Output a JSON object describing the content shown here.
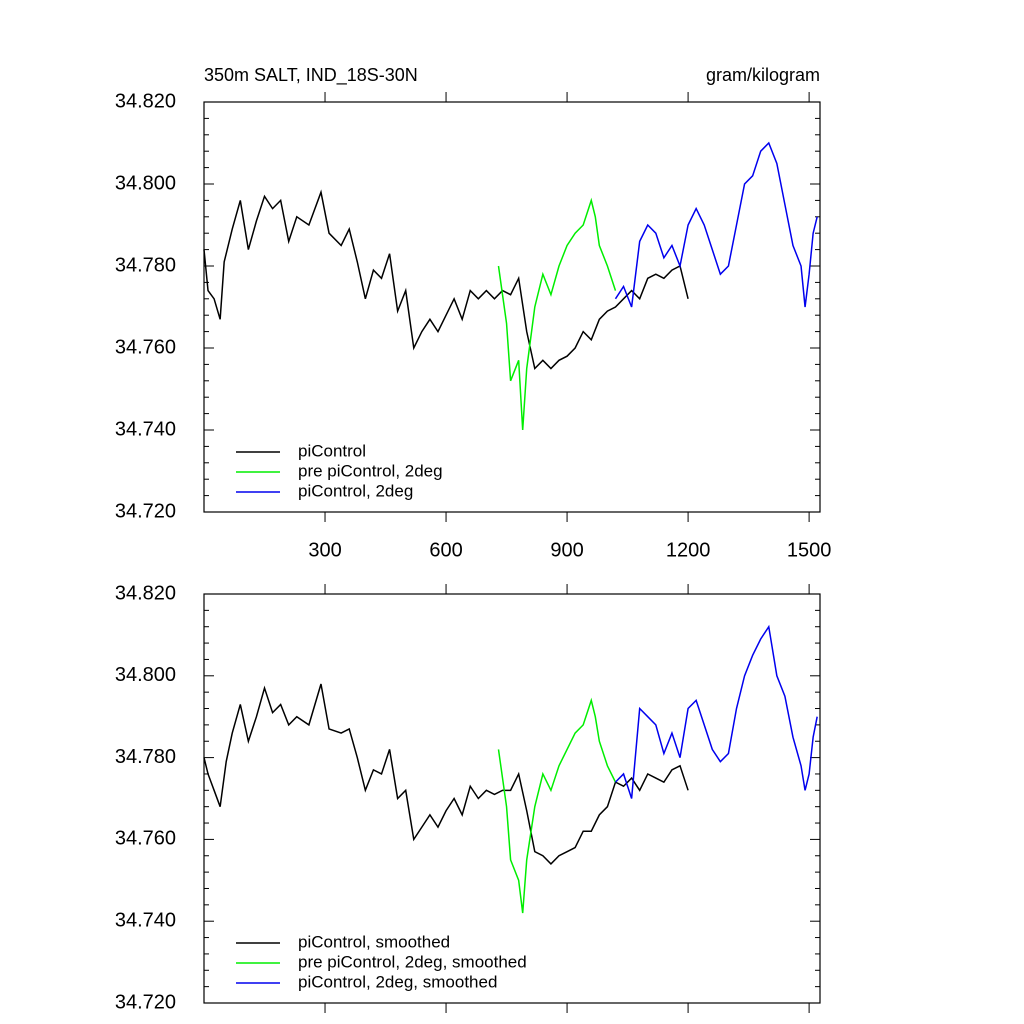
{
  "chart_data": [
    {
      "type": "line",
      "title": "350m SALT, IND_18S-30N",
      "units": "gram/kilogram",
      "xlim": [
        0,
        1527
      ],
      "xticks": [
        300,
        600,
        900,
        1200,
        1500
      ],
      "show_xtick_labels": true,
      "ylim": [
        34.72,
        34.82
      ],
      "yticks": [
        {
          "value": 34.72,
          "label": "34.720"
        },
        {
          "value": 34.74,
          "label": "34.740"
        },
        {
          "value": 34.76,
          "label": "34.760"
        },
        {
          "value": 34.78,
          "label": "34.780"
        },
        {
          "value": 34.8,
          "label": "34.800"
        },
        {
          "value": 34.82,
          "label": "34.820"
        }
      ],
      "legend": "lower left",
      "series": [
        {
          "name": "piControl",
          "color": "#000000",
          "x": [
            0,
            10,
            25,
            40,
            50,
            70,
            90,
            110,
            130,
            150,
            170,
            190,
            210,
            230,
            260,
            290,
            310,
            340,
            360,
            380,
            400,
            420,
            440,
            460,
            480,
            500,
            520,
            540,
            560,
            580,
            600,
            620,
            640,
            660,
            680,
            700,
            720,
            740,
            760,
            780,
            800,
            820,
            840,
            860,
            880,
            900,
            920,
            940,
            960,
            980,
            1000,
            1020,
            1040,
            1060,
            1080,
            1100,
            1120,
            1140,
            1160,
            1180,
            1200
          ],
          "values": [
            34.784,
            34.774,
            34.772,
            34.767,
            34.781,
            34.789,
            34.796,
            34.784,
            34.791,
            34.797,
            34.794,
            34.796,
            34.786,
            34.792,
            34.79,
            34.798,
            34.788,
            34.785,
            34.789,
            34.781,
            34.772,
            34.779,
            34.777,
            34.783,
            34.769,
            34.774,
            34.76,
            34.764,
            34.767,
            34.764,
            34.768,
            34.772,
            34.767,
            34.774,
            34.772,
            34.774,
            34.772,
            34.774,
            34.773,
            34.777,
            34.764,
            34.755,
            34.757,
            34.755,
            34.757,
            34.758,
            34.76,
            34.764,
            34.762,
            34.767,
            34.769,
            34.77,
            34.772,
            34.774,
            34.772,
            34.777,
            34.778,
            34.777,
            34.779,
            34.78,
            34.772
          ]
        },
        {
          "name": "pre piControl, 2deg",
          "color": "#00ee00",
          "x": [
            730,
            750,
            760,
            780,
            790,
            800,
            820,
            840,
            860,
            880,
            900,
            920,
            940,
            960,
            970,
            980,
            1000,
            1020
          ],
          "values": [
            34.78,
            34.766,
            34.752,
            34.757,
            34.74,
            34.755,
            34.77,
            34.778,
            34.773,
            34.78,
            34.785,
            34.788,
            34.79,
            34.796,
            34.792,
            34.785,
            34.78,
            34.774
          ]
        },
        {
          "name": "piControl, 2deg",
          "color": "#0000ee",
          "x": [
            1020,
            1040,
            1060,
            1080,
            1100,
            1120,
            1140,
            1160,
            1180,
            1200,
            1220,
            1240,
            1260,
            1280,
            1300,
            1320,
            1340,
            1360,
            1380,
            1400,
            1420,
            1440,
            1460,
            1480,
            1490,
            1500,
            1510,
            1520
          ],
          "values": [
            34.772,
            34.775,
            34.77,
            34.786,
            34.79,
            34.788,
            34.782,
            34.785,
            34.78,
            34.79,
            34.794,
            34.79,
            34.784,
            34.778,
            34.78,
            34.79,
            34.8,
            34.802,
            34.808,
            34.81,
            34.805,
            34.795,
            34.785,
            34.78,
            34.77,
            34.778,
            34.788,
            34.792
          ]
        }
      ]
    },
    {
      "type": "line",
      "xlim": [
        0,
        1527
      ],
      "xticks": [
        300,
        600,
        900,
        1200,
        1500
      ],
      "show_xtick_labels": false,
      "ylim": [
        34.72,
        34.82
      ],
      "yticks": [
        {
          "value": 34.72,
          "label": "34.720"
        },
        {
          "value": 34.74,
          "label": "34.740"
        },
        {
          "value": 34.76,
          "label": "34.760"
        },
        {
          "value": 34.78,
          "label": "34.780"
        },
        {
          "value": 34.8,
          "label": "34.800"
        },
        {
          "value": 34.82,
          "label": "34.820"
        }
      ],
      "legend": "lower left",
      "series": [
        {
          "name": "piControl, smoothed",
          "color": "#000000",
          "x": [
            0,
            10,
            25,
            40,
            55,
            70,
            90,
            110,
            130,
            150,
            170,
            190,
            210,
            230,
            260,
            290,
            310,
            340,
            360,
            380,
            400,
            420,
            440,
            460,
            480,
            500,
            520,
            540,
            560,
            580,
            600,
            620,
            640,
            660,
            680,
            700,
            720,
            740,
            760,
            780,
            800,
            820,
            840,
            860,
            880,
            900,
            920,
            940,
            960,
            980,
            1000,
            1020,
            1040,
            1060,
            1080,
            1100,
            1120,
            1140,
            1160,
            1180,
            1200
          ],
          "values": [
            34.78,
            34.776,
            34.772,
            34.768,
            34.779,
            34.786,
            34.793,
            34.784,
            34.79,
            34.797,
            34.791,
            34.793,
            34.788,
            34.79,
            34.788,
            34.798,
            34.787,
            34.786,
            34.787,
            34.78,
            34.772,
            34.777,
            34.776,
            34.782,
            34.77,
            34.772,
            34.76,
            34.763,
            34.766,
            34.763,
            34.767,
            34.77,
            34.766,
            34.773,
            34.77,
            34.772,
            34.771,
            34.772,
            34.772,
            34.776,
            34.767,
            34.757,
            34.756,
            34.754,
            34.756,
            34.757,
            34.758,
            34.762,
            34.762,
            34.766,
            34.768,
            34.774,
            34.773,
            34.775,
            34.772,
            34.776,
            34.775,
            34.774,
            34.777,
            34.778,
            34.772
          ]
        },
        {
          "name": "pre piControl, 2deg, smoothed",
          "color": "#00ee00",
          "x": [
            730,
            750,
            760,
            780,
            790,
            800,
            820,
            840,
            860,
            880,
            900,
            920,
            940,
            960,
            970,
            980,
            1000,
            1020
          ],
          "values": [
            34.782,
            34.768,
            34.755,
            34.75,
            34.742,
            34.755,
            34.768,
            34.776,
            34.772,
            34.778,
            34.782,
            34.786,
            34.788,
            34.794,
            34.79,
            34.784,
            34.778,
            34.774
          ]
        },
        {
          "name": "piControl, 2deg, smoothed",
          "color": "#0000ee",
          "x": [
            1020,
            1040,
            1060,
            1080,
            1100,
            1120,
            1140,
            1160,
            1180,
            1200,
            1220,
            1240,
            1260,
            1280,
            1300,
            1320,
            1340,
            1360,
            1380,
            1400,
            1420,
            1440,
            1460,
            1480,
            1490,
            1500,
            1510,
            1520
          ],
          "values": [
            34.774,
            34.776,
            34.77,
            34.792,
            34.79,
            34.788,
            34.781,
            34.786,
            34.78,
            34.792,
            34.794,
            34.788,
            34.782,
            34.779,
            34.781,
            34.792,
            34.8,
            34.805,
            34.809,
            34.812,
            34.8,
            34.795,
            34.785,
            34.778,
            34.772,
            34.776,
            34.785,
            34.79
          ]
        }
      ]
    }
  ]
}
